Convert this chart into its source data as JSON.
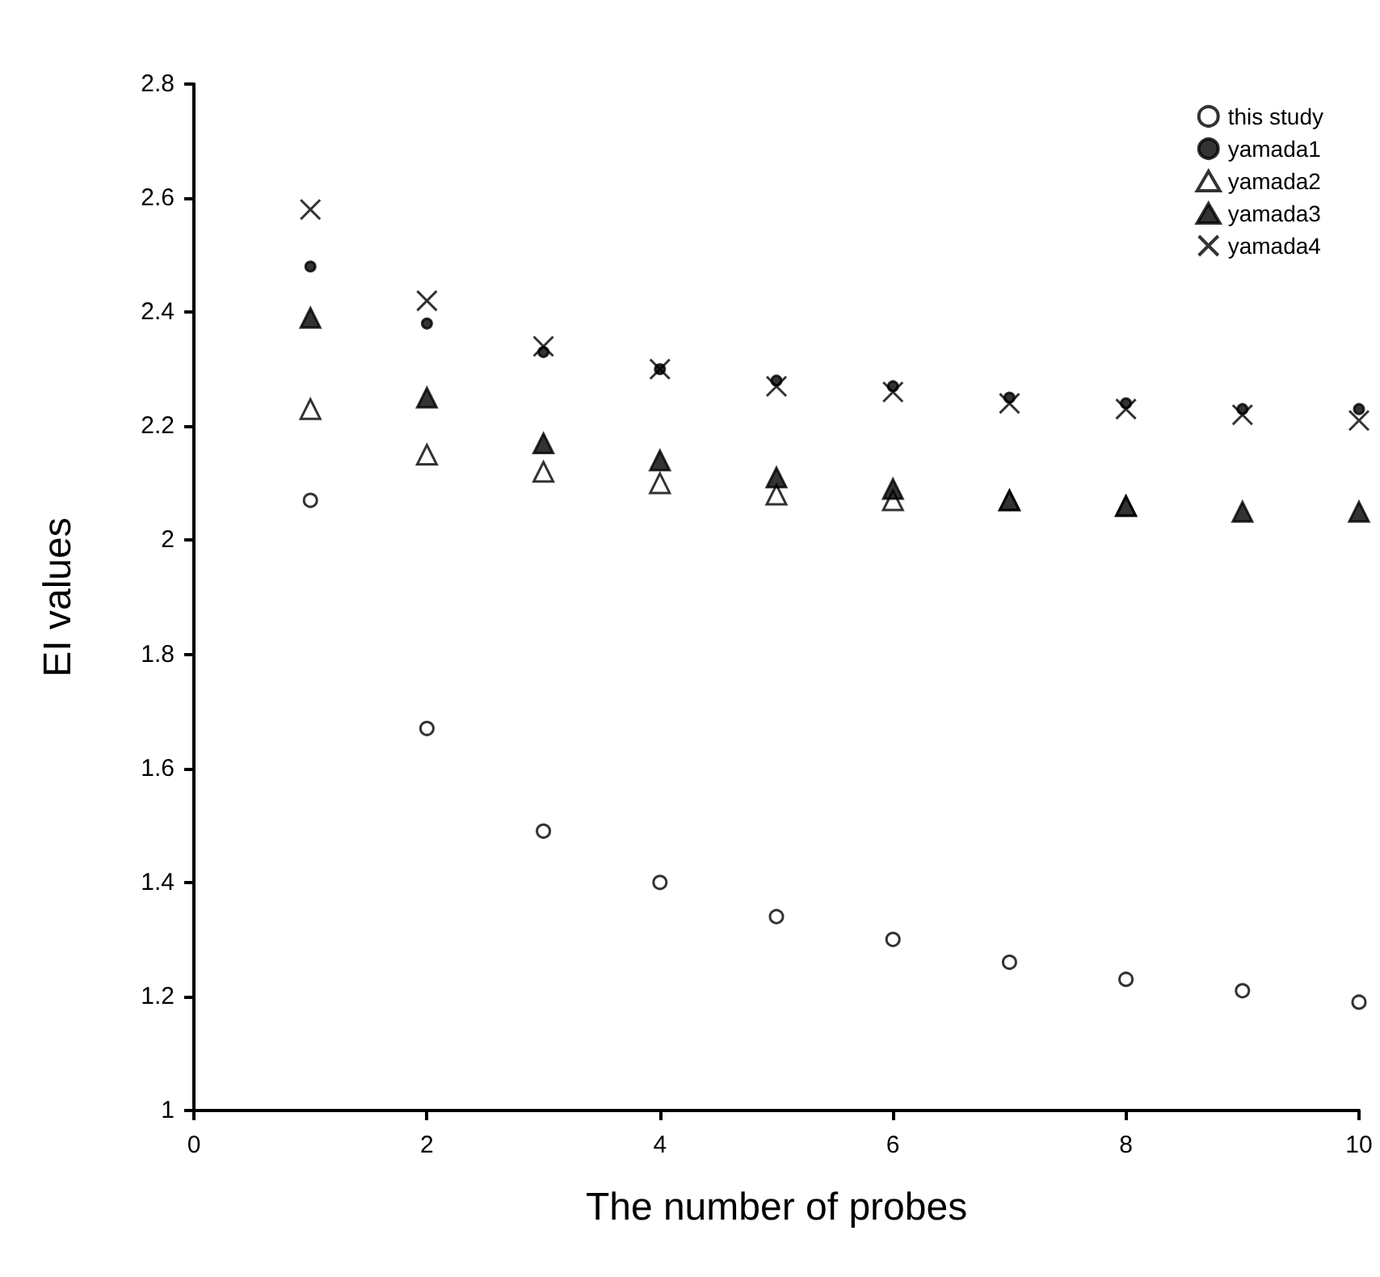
{
  "chart_data": {
    "type": "scatter",
    "xlabel": "The number of probes",
    "ylabel": "EI values",
    "x": [
      1,
      2,
      3,
      4,
      5,
      6,
      7,
      8,
      9,
      10
    ],
    "xlim": [
      0,
      10
    ],
    "xticks": [
      0,
      2,
      4,
      6,
      8,
      10
    ],
    "ylim": [
      1,
      2.8
    ],
    "yticks": [
      1,
      1.2,
      1.4,
      1.6,
      1.8,
      2,
      2.2,
      2.4,
      2.6,
      2.8
    ],
    "grid": false,
    "legend": "top right",
    "series": [
      {
        "name": "this study",
        "color": "#000000",
        "marker": "circle",
        "values": [
          2.07,
          1.67,
          1.49,
          1.4,
          1.34,
          1.3,
          1.26,
          1.23,
          1.21,
          1.19
        ]
      },
      {
        "name": "yamada1",
        "color": "#000000",
        "marker": "circle",
        "values": [
          2.48,
          2.38,
          2.33,
          2.3,
          2.28,
          2.27,
          2.25,
          2.24,
          2.23,
          2.23
        ]
      },
      {
        "name": "yamada2",
        "color": "#000000",
        "marker": "triangle",
        "values": [
          2.23,
          2.15,
          2.12,
          2.1,
          2.08,
          2.07,
          2.07,
          2.06,
          null,
          null
        ]
      },
      {
        "name": "yamada3",
        "color": "#000000",
        "marker": "triangle",
        "values": [
          2.39,
          2.25,
          2.17,
          2.14,
          2.11,
          2.09,
          2.07,
          2.06,
          2.05,
          2.05
        ]
      },
      {
        "name": "yamada4",
        "color": "#000000",
        "marker": "cross",
        "values": [
          2.58,
          2.42,
          2.34,
          2.3,
          2.27,
          2.26,
          2.24,
          2.23,
          2.22,
          2.21
        ]
      }
    ]
  }
}
